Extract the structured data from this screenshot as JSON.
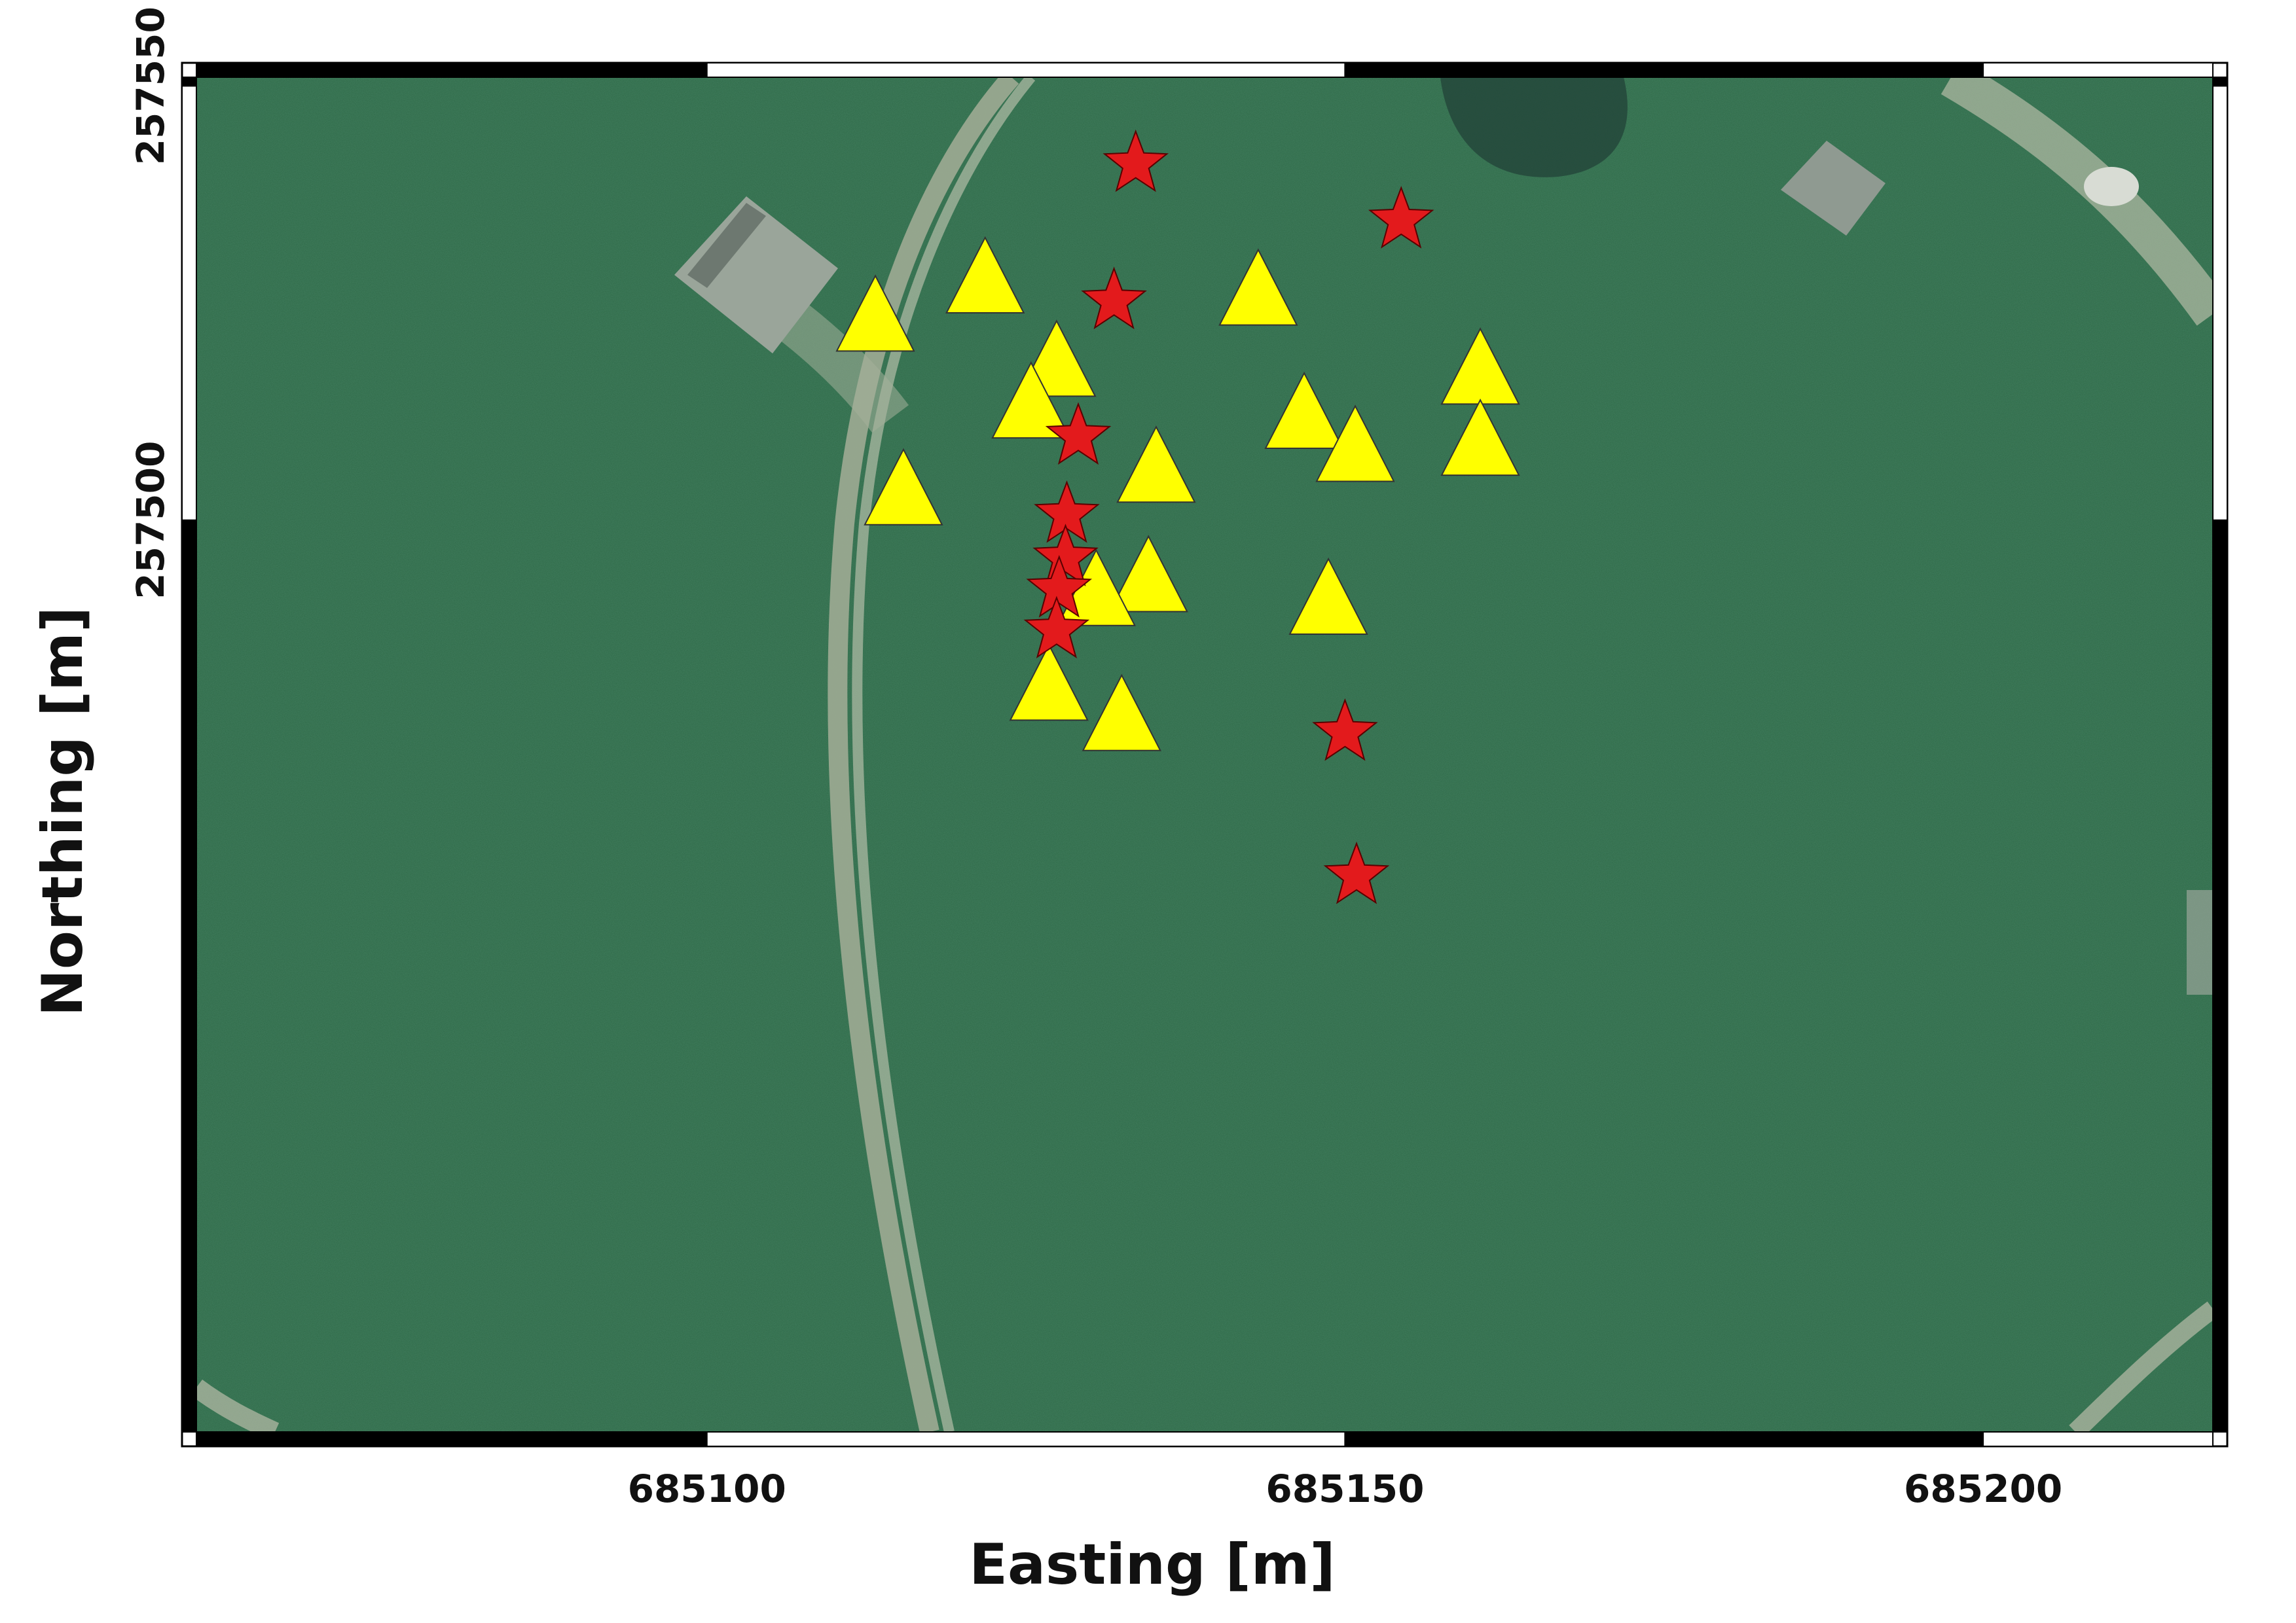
{
  "map": {
    "x_axis": {
      "title": "Easting [m]",
      "range": [
        685060,
        685218
      ],
      "ticks": [
        {
          "value": 685100,
          "label": "685100"
        },
        {
          "value": 685150,
          "label": "685150"
        },
        {
          "value": 685200,
          "label": "685200"
        }
      ]
    },
    "y_axis": {
      "title": "Northing [m]",
      "range": [
        257395,
        257551
      ],
      "ticks": [
        {
          "value": 257500,
          "label": "257500"
        },
        {
          "value": 257550,
          "label": "257550"
        }
      ]
    },
    "frame_colors": [
      "#000000",
      "#ffffff"
    ],
    "background": "aerial imagery of grass field with curved dirt track and buildings",
    "colors": {
      "grass": "#2f6a48",
      "track": "#a7b29a",
      "triangle": "#ffff00",
      "star": "#e31a1c"
    },
    "triangles": [
      {
        "e": 685121.8,
        "n": 257528.2
      },
      {
        "e": 685113.2,
        "n": 257523.8
      },
      {
        "e": 685143.2,
        "n": 257526.8
      },
      {
        "e": 685127.4,
        "n": 257518.6
      },
      {
        "e": 685160.6,
        "n": 257517.7
      },
      {
        "e": 685125.4,
        "n": 257513.8
      },
      {
        "e": 685146.8,
        "n": 257512.6
      },
      {
        "e": 685150.8,
        "n": 257508.8
      },
      {
        "e": 685160.6,
        "n": 257509.5
      },
      {
        "e": 685135.2,
        "n": 257506.4
      },
      {
        "e": 685115.4,
        "n": 257503.8
      },
      {
        "e": 685134.6,
        "n": 257493.8
      },
      {
        "e": 685130.5,
        "n": 257492.2
      },
      {
        "e": 685148.7,
        "n": 257491.2
      },
      {
        "e": 685126.8,
        "n": 257481.3
      },
      {
        "e": 685132.5,
        "n": 257477.8
      }
    ],
    "stars": [
      {
        "e": 685133.6,
        "n": 257541.0
      },
      {
        "e": 685154.4,
        "n": 257534.5
      },
      {
        "e": 685131.9,
        "n": 257525.2
      },
      {
        "e": 685129.1,
        "n": 257509.6
      },
      {
        "e": 685128.2,
        "n": 257500.6
      },
      {
        "e": 685128.1,
        "n": 257495.6
      },
      {
        "e": 685127.6,
        "n": 257492.0
      },
      {
        "e": 685127.4,
        "n": 257487.3
      },
      {
        "e": 685150.0,
        "n": 257475.5
      },
      {
        "e": 685150.9,
        "n": 257459.0
      }
    ]
  }
}
